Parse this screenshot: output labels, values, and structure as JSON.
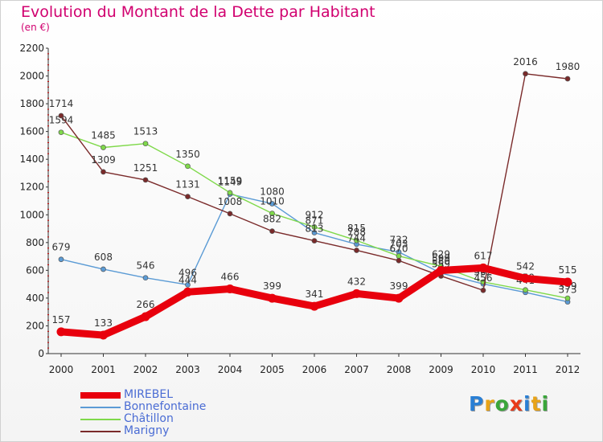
{
  "title": "Evolution du Montant de la Dette par Habitant",
  "unit_label": "(en €)",
  "logo": {
    "letters": [
      "P",
      "r",
      "o",
      "x",
      "i",
      "t",
      "i"
    ],
    "colors": [
      "#2a7fd4",
      "#e8a317",
      "#3aa63a",
      "#e83a1a",
      "#2a7fd4",
      "#e8a317",
      "#3aa63a"
    ]
  },
  "chart_data": {
    "type": "line",
    "x": [
      "2000",
      "2001",
      "2002",
      "2003",
      "2004",
      "2005",
      "2006",
      "2007",
      "2008",
      "2009",
      "2010",
      "2011",
      "2012"
    ],
    "ylim": [
      0,
      2200
    ],
    "yticks": [
      0,
      200,
      400,
      600,
      800,
      1000,
      1200,
      1400,
      1600,
      1800,
      2000,
      2200
    ],
    "grid": false,
    "legend_position": "bottom-left",
    "series": [
      {
        "name": "MIREBEL",
        "color": "#e8000d",
        "emphasis": true,
        "values": [
          157,
          133,
          266,
          444,
          466,
          399,
          341,
          432,
          399,
          599,
          617,
          542,
          515
        ]
      },
      {
        "name": "Bonnefontaine",
        "color": "#5b9bd5",
        "values": [
          679,
          608,
          546,
          496,
          1149,
          1080,
          871,
          788,
          732,
          580,
          502,
          441,
          373
        ]
      },
      {
        "name": "Châtillon",
        "color": "#7fd94a",
        "values": [
          1594,
          1485,
          1513,
          1350,
          1159,
          1010,
          912,
          815,
          703,
          629,
          516,
          459,
          399
        ]
      },
      {
        "name": "Marigny",
        "color": "#7a2a2a",
        "values": [
          1714,
          1309,
          1251,
          1131,
          1008,
          882,
          813,
          744,
          670,
          559,
          456,
          2016,
          1980
        ]
      }
    ]
  }
}
